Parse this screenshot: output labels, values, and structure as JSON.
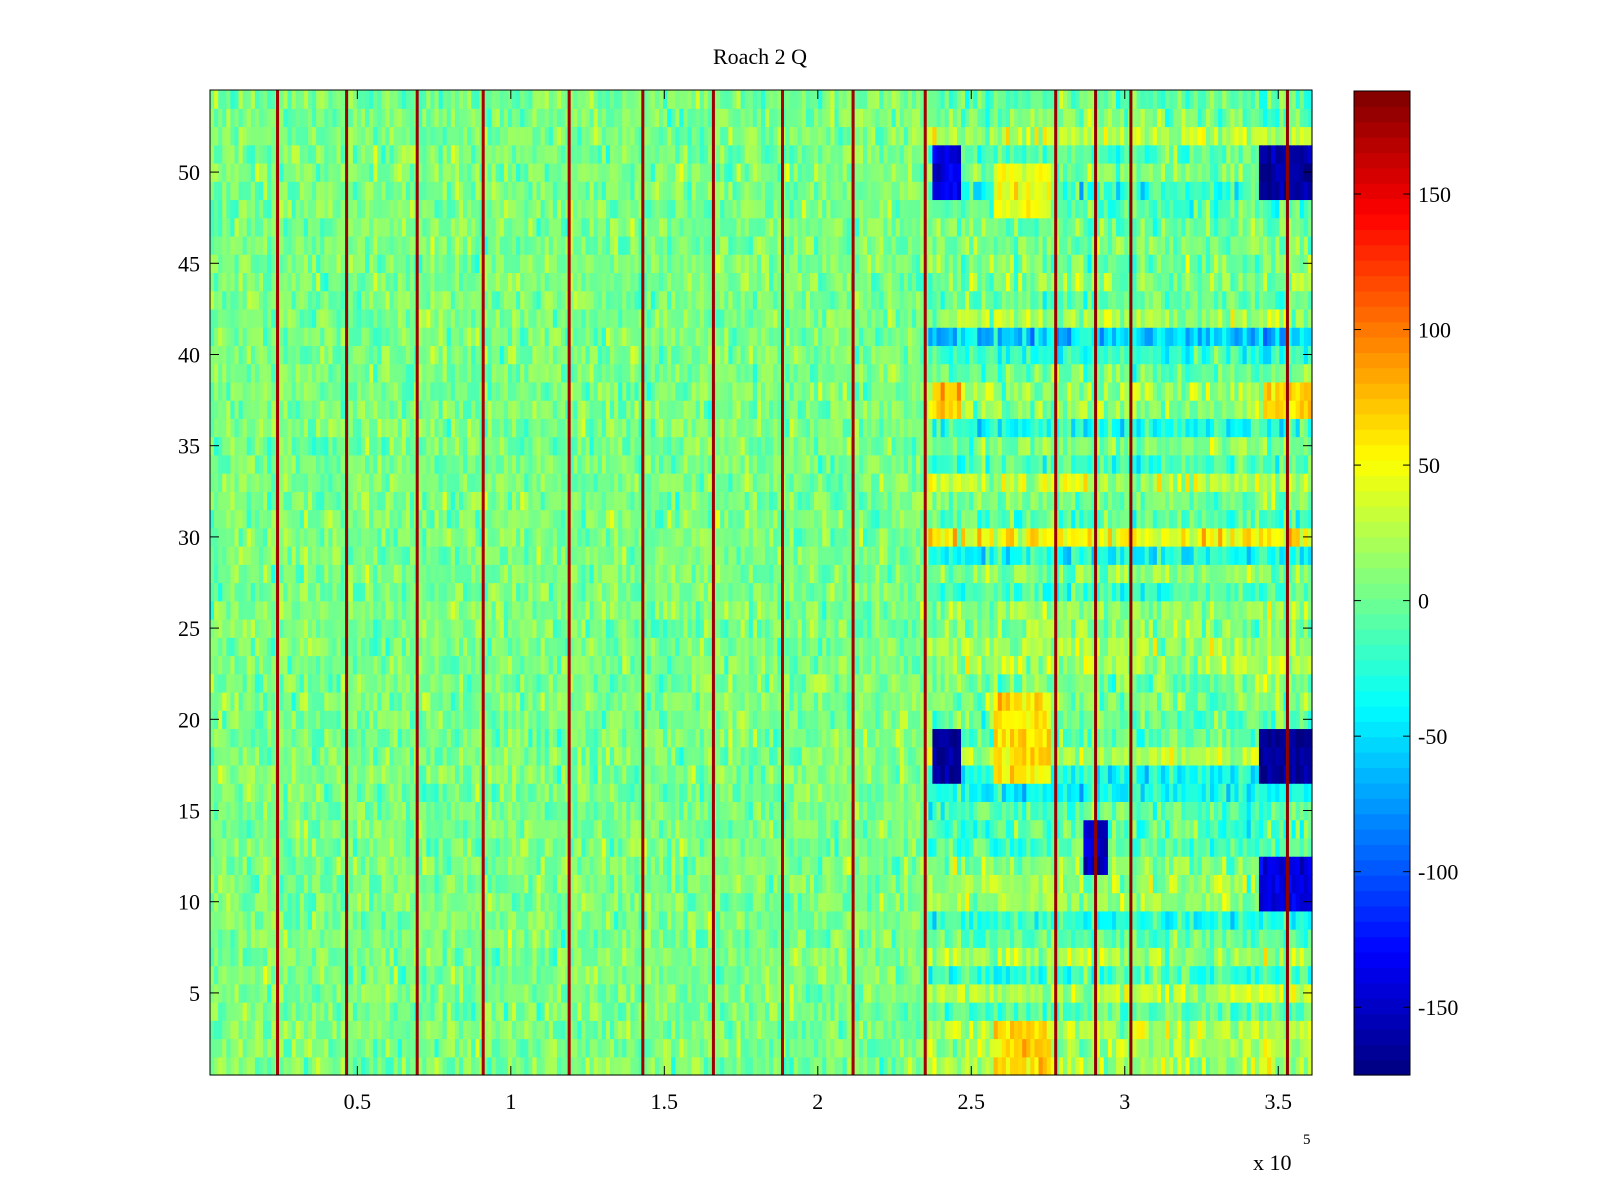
{
  "chart_data": {
    "type": "heatmap",
    "title": "Roach 2 Q",
    "xlabel": "",
    "ylabel": "",
    "x_multiplier_label": "x 10",
    "x_multiplier_exponent": "5",
    "xlim": [
      2000,
      361000
    ],
    "ylim": [
      0.5,
      54.5
    ],
    "x_ticks": [
      {
        "value": 50000,
        "label": "0.5"
      },
      {
        "value": 100000,
        "label": "1"
      },
      {
        "value": 150000,
        "label": "1.5"
      },
      {
        "value": 200000,
        "label": "2"
      },
      {
        "value": 250000,
        "label": "2.5"
      },
      {
        "value": 300000,
        "label": "3"
      },
      {
        "value": 350000,
        "label": "3.5"
      }
    ],
    "y_ticks": [
      5,
      10,
      15,
      20,
      25,
      30,
      35,
      40,
      45,
      50
    ],
    "rows": 54,
    "colormap": "jet",
    "clim": [
      -175,
      188
    ],
    "colorbar_ticks": [
      -150,
      -100,
      -50,
      0,
      50,
      100,
      150
    ],
    "grid": false,
    "vertical_spikes": [
      {
        "x": 24000,
        "value": 175
      },
      {
        "x": 46500,
        "value": 178
      },
      {
        "x": 69500,
        "value": 178
      },
      {
        "x": 91000,
        "value": 172
      },
      {
        "x": 119000,
        "value": 175
      },
      {
        "x": 143000,
        "value": 175
      },
      {
        "x": 166000,
        "value": 178
      },
      {
        "x": 188500,
        "value": 172
      },
      {
        "x": 211500,
        "value": 175
      },
      {
        "x": 235000,
        "value": 175
      },
      {
        "x": 277500,
        "value": 178
      },
      {
        "x": 290500,
        "value": 182
      },
      {
        "x": 302000,
        "value": 182
      },
      {
        "x": 353000,
        "value": 182
      }
    ],
    "region_background": [
      {
        "x_range": [
          2000,
          236000
        ],
        "value": 5,
        "note": "uniform noise"
      },
      {
        "x_range": [
          236000,
          361000
        ],
        "value": 0,
        "note": "row-banded noise"
      }
    ],
    "cold_patches": [
      {
        "x_range": [
          237000,
          247000
        ],
        "rows": [
          17,
          19
        ],
        "value": -165
      },
      {
        "x_range": [
          237000,
          247000
        ],
        "rows": [
          49,
          51
        ],
        "value": -140
      },
      {
        "x_range": [
          344000,
          361000
        ],
        "rows": [
          17,
          19
        ],
        "value": -170
      },
      {
        "x_range": [
          344000,
          361000
        ],
        "rows": [
          49,
          51
        ],
        "value": -160
      },
      {
        "x_range": [
          344000,
          361000
        ],
        "rows": [
          10,
          12
        ],
        "value": -140
      },
      {
        "x_range": [
          287000,
          294000
        ],
        "rows": [
          12,
          14
        ],
        "value": -150
      }
    ],
    "warm_patches": [
      {
        "x_range": [
          257000,
          276000
        ],
        "rows": [
          17,
          21
        ],
        "value": 60
      },
      {
        "x_range": [
          257000,
          276000
        ],
        "rows": [
          1,
          3
        ],
        "value": 65
      },
      {
        "x_range": [
          237000,
          247000
        ],
        "rows": [
          37,
          38
        ],
        "value": 70
      },
      {
        "x_range": [
          345000,
          361000
        ],
        "rows": [
          37,
          38
        ],
        "value": 65
      },
      {
        "x_range": [
          257000,
          276000
        ],
        "rows": [
          48,
          50
        ],
        "value": 45
      }
    ]
  }
}
